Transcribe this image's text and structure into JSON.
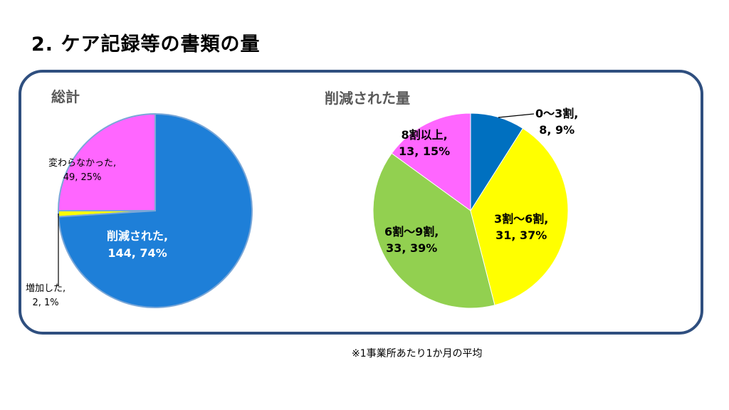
{
  "title": "2. ケア記録等の書類の量",
  "note": "※1事業所あたり1か月の平均",
  "chart_data": [
    {
      "type": "pie",
      "title": "総計",
      "slices": [
        {
          "label": "削減された",
          "count": 144,
          "percent": 74,
          "color": "#1e7fd8",
          "text": "削減された,",
          "value_text": "144, 74%"
        },
        {
          "label": "増加した",
          "count": 2,
          "percent": 1,
          "color": "#ffff00",
          "text": "増加した,",
          "value_text": "2, 1%"
        },
        {
          "label": "変わらなかった",
          "count": 49,
          "percent": 25,
          "color": "#ff66ff",
          "text": "変わらなかった,",
          "value_text": "49, 25%"
        }
      ]
    },
    {
      "type": "pie",
      "title": "削減された量",
      "slices": [
        {
          "label": "0〜3割",
          "count": 8,
          "percent": 9,
          "color": "#0070c0",
          "text": "0〜3割,",
          "value_text": "8, 9%"
        },
        {
          "label": "3割〜6割",
          "count": 31,
          "percent": 37,
          "color": "#ffff00",
          "text": "3割〜6割,",
          "value_text": "31, 37%"
        },
        {
          "label": "6割〜9割",
          "count": 33,
          "percent": 39,
          "color": "#92d050",
          "text": "6割〜9割,",
          "value_text": "33, 39%"
        },
        {
          "label": "8割以上",
          "count": 13,
          "percent": 15,
          "color": "#ff66ff",
          "text": "8割以上,",
          "value_text": "13, 15%"
        }
      ]
    }
  ]
}
